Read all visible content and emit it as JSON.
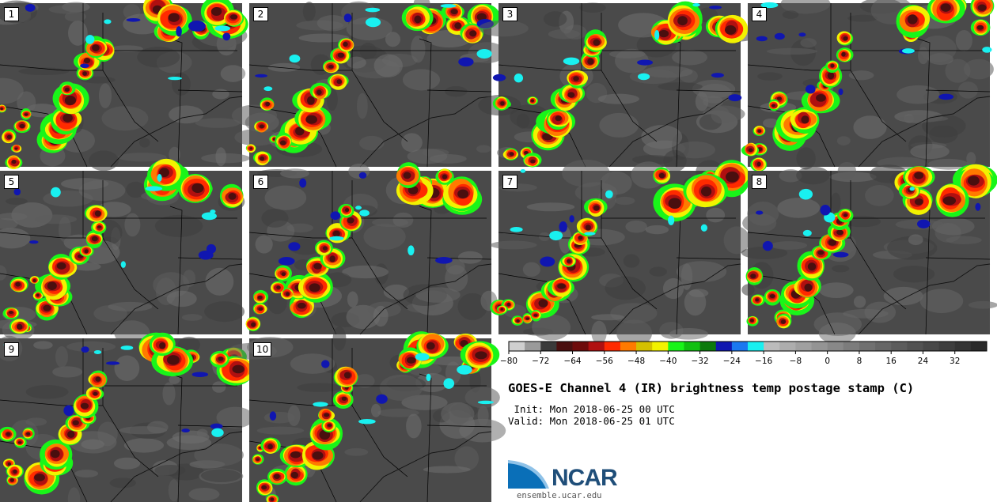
{
  "panels": [
    {
      "label": "1"
    },
    {
      "label": "2"
    },
    {
      "label": "3"
    },
    {
      "label": "4"
    },
    {
      "label": "5"
    },
    {
      "label": "6"
    },
    {
      "label": "7"
    },
    {
      "label": "8"
    },
    {
      "label": "9"
    },
    {
      "label": "10"
    }
  ],
  "colorbar": {
    "ticks": [
      "−80",
      "−72",
      "−64",
      "−56",
      "−48",
      "−40",
      "−32",
      "−24",
      "−16",
      "−8",
      "0",
      "8",
      "16",
      "24",
      "32"
    ],
    "tick_values": [
      -80,
      -72,
      -64,
      -56,
      -48,
      -40,
      -32,
      -24,
      -16,
      -8,
      0,
      8,
      16,
      24,
      32
    ],
    "range": [
      -80,
      40
    ],
    "step": 4,
    "colors": [
      "#cfcfcf",
      "#9a9a9a",
      "#3a3a3a",
      "#4a0f0f",
      "#6e0b0b",
      "#b01010",
      "#ff2a00",
      "#ff7a00",
      "#d4c000",
      "#f2f200",
      "#19f519",
      "#10c010",
      "#0b7a0b",
      "#1016b0",
      "#1a78f0",
      "#19f0f0",
      "#bcbcbc",
      "#adadad",
      "#a0a0a0",
      "#949494",
      "#888888",
      "#7c7c7c",
      "#707070",
      "#666666",
      "#5c5c5c",
      "#525252",
      "#484848",
      "#3e3e3e",
      "#343434",
      "#2a2a2a"
    ]
  },
  "title": "GOES-E Channel 4 (IR) brightness temp postage stamp (C)",
  "init": " Init: Mon 2018-06-25 00 UTC",
  "valid": "Valid: Mon 2018-06-25 01 UTC",
  "logo": {
    "text": "NCAR",
    "url": "ensemble.ucar.edu",
    "color": "#1f4e79"
  },
  "map_colors": {
    "background": "#4a4a4a",
    "border": "#000000"
  }
}
